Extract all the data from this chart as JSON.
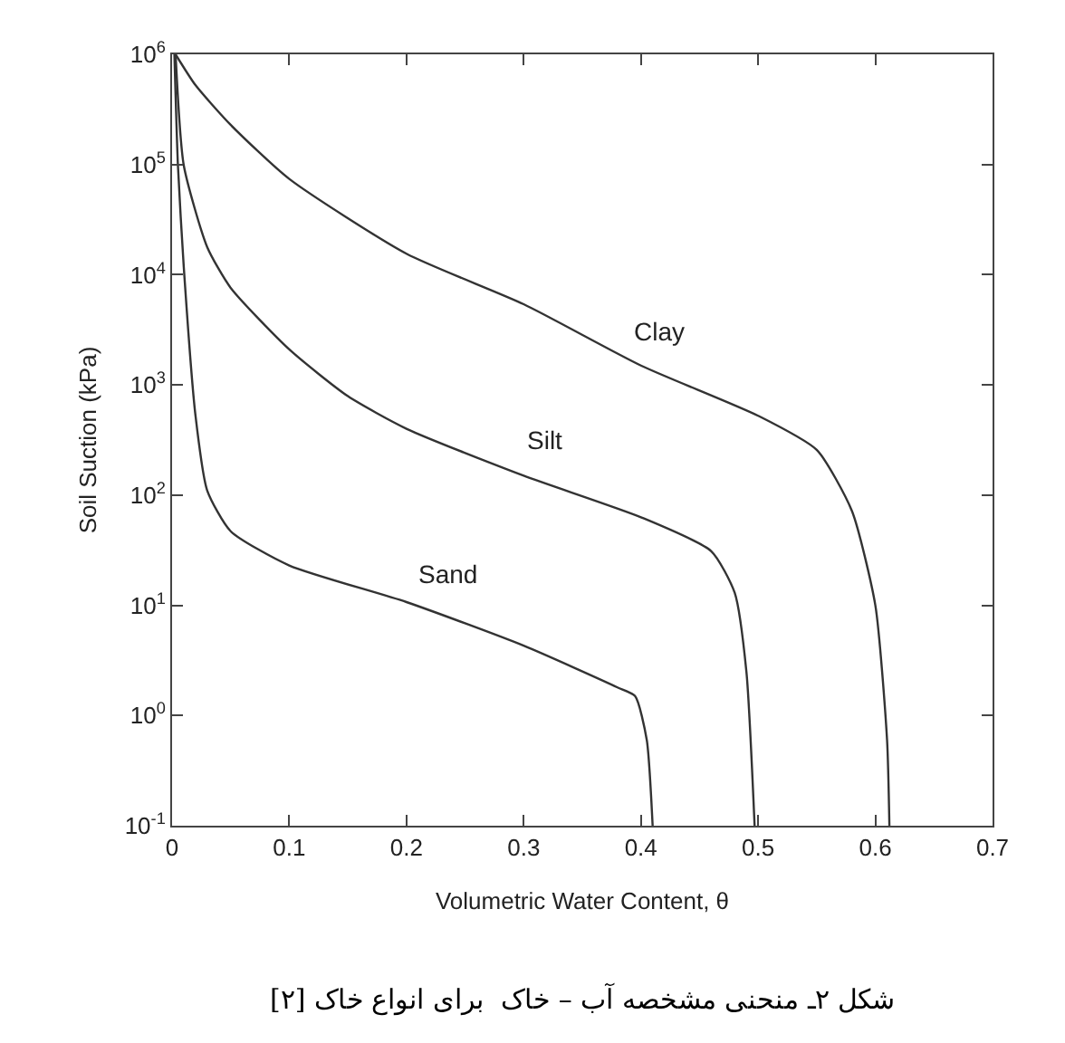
{
  "chart_data": {
    "type": "line",
    "xlabel": "Volumetric Water Content, θ",
    "ylabel": "Soil Suction (kPa)",
    "annotations": [
      "شکل ۲ـ منحنی مشخصه آب – خاک  برای انواع خاک [۲]"
    ],
    "log": "y",
    "grid": false,
    "legend": false,
    "marker": "none",
    "line_style": "solid",
    "xlim": [
      0,
      0.7
    ],
    "xticks": [
      0,
      0.1,
      0.2,
      0.3,
      0.4,
      0.5,
      0.6,
      0.7
    ],
    "ylim": [
      0.1,
      1000000
    ],
    "yticks": [
      {
        "value": 0.1,
        "label": "10$^{-1}$"
      },
      {
        "value": 1,
        "label": "10$^{0}$"
      },
      {
        "value": 10,
        "label": "10$^{1}$"
      },
      {
        "value": 100,
        "label": "10$^{2}$"
      },
      {
        "value": 1000,
        "label": "10$^{3}$"
      },
      {
        "value": 10000,
        "label": "10$^{4}$"
      },
      {
        "value": 100000,
        "label": "10$^{5}$"
      },
      {
        "value": 1000000,
        "label": "10$^{6}$"
      }
    ],
    "series": [
      {
        "name": "Clay",
        "color": "#333333",
        "x": [
          0.003,
          0.02,
          0.05,
          0.1,
          0.2,
          0.3,
          0.4,
          0.5,
          0.55,
          0.58,
          0.6,
          0.61,
          0.612
        ],
        "values": [
          1000000,
          525000,
          229000,
          74000,
          15500,
          5400,
          1500,
          525,
          257,
          72,
          10,
          0.6,
          0.1
        ]
      },
      {
        "name": "Silt",
        "color": "#333333",
        "x": [
          0.003,
          0.01,
          0.03,
          0.05,
          0.1,
          0.15,
          0.2,
          0.3,
          0.4,
          0.46,
          0.48,
          0.49,
          0.497
        ],
        "values": [
          1000000,
          98000,
          17800,
          7600,
          2100,
          790,
          400,
          150,
          63,
          31,
          13,
          2.5,
          0.1
        ]
      },
      {
        "name": "Sand",
        "color": "#333333",
        "x": [
          0.002,
          0.005,
          0.01,
          0.02,
          0.03,
          0.05,
          0.1,
          0.2,
          0.3,
          0.38,
          0.395,
          0.405,
          0.41
        ],
        "values": [
          1000000,
          98000,
          11700,
          525,
          110,
          47,
          23,
          10.7,
          4.3,
          1.8,
          1.5,
          0.6,
          0.1
        ]
      }
    ]
  }
}
